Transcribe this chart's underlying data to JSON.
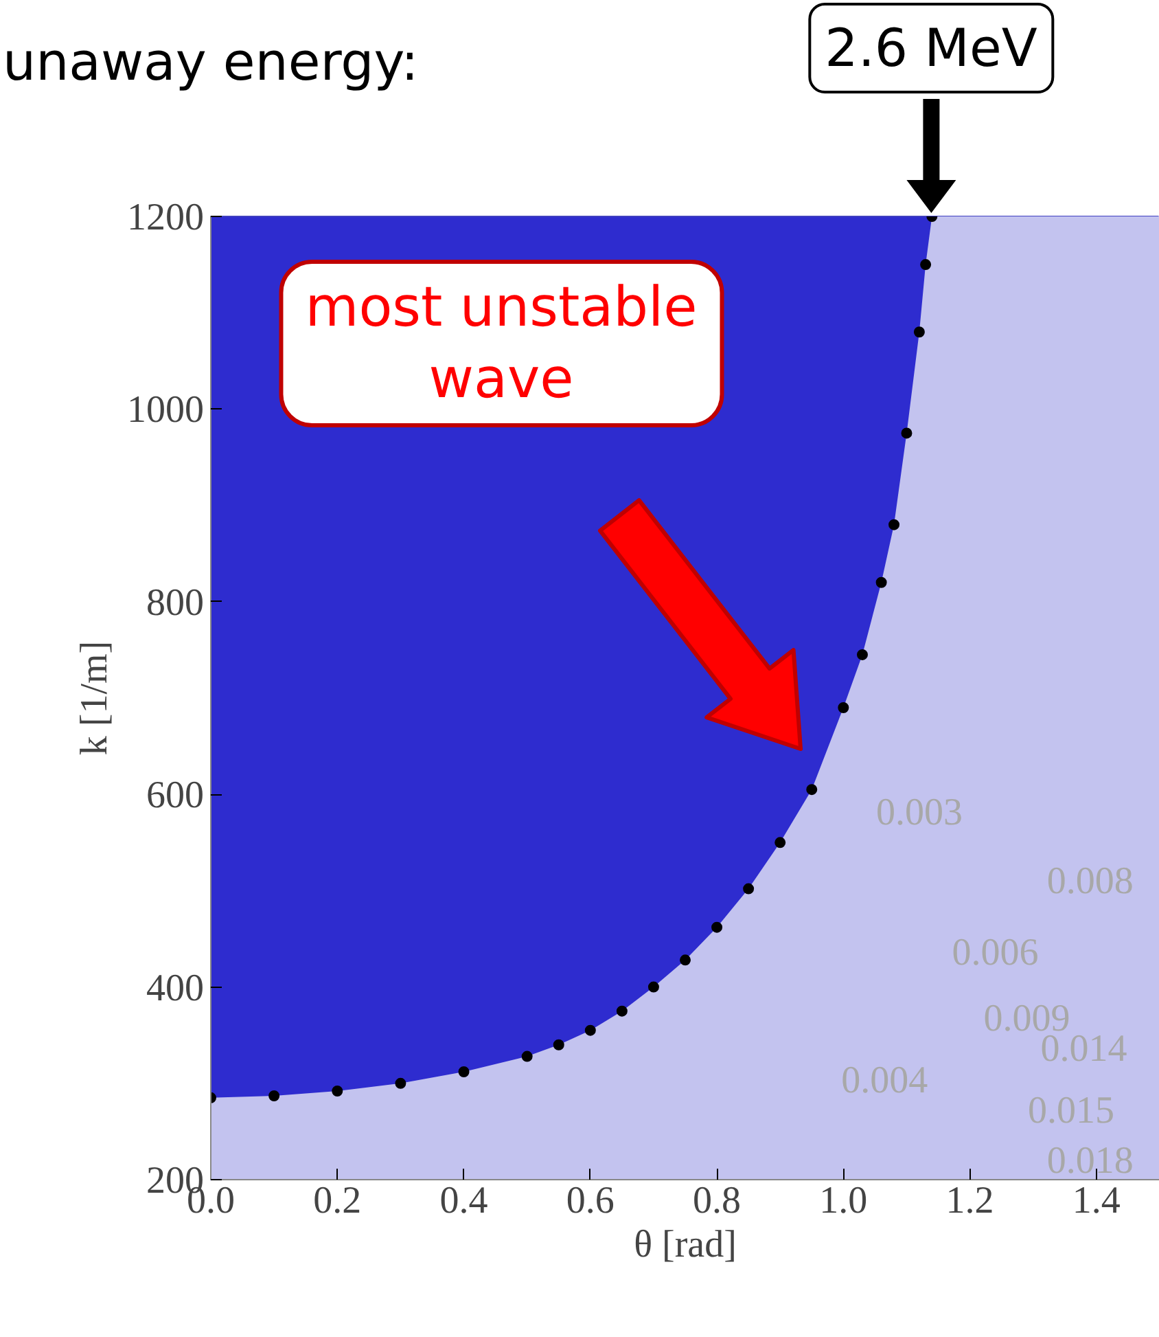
{
  "chart_data": {
    "type": "scatter",
    "title": "unaway energy:",
    "xlabel": "θ [rad]",
    "ylabel": "k [1/m]",
    "xlim": [
      0,
      1.5
    ],
    "ylim": [
      200,
      1200
    ],
    "xticks": [
      {
        "value": 0,
        "label": "0.0"
      },
      0.2,
      0.4,
      0.6,
      0.8,
      {
        "value": 1,
        "label": "1.0"
      },
      1.2,
      1.4
    ],
    "yticks": [
      200,
      400,
      600,
      800,
      1000,
      1200
    ],
    "series": [
      {
        "type": "area",
        "color": "#c3c3ef",
        "x": [
          0,
          0.1,
          0.2,
          0.3,
          0.4,
          0.5,
          0.55,
          0.6,
          0.65,
          0.7,
          0.75,
          0.8,
          0.85,
          0.9,
          0.95,
          1.0,
          1.03,
          1.06,
          1.08,
          1.1,
          1.12,
          1.13,
          1.14,
          1.5
        ],
        "values": [
          285,
          287,
          292,
          300,
          312,
          328,
          340,
          355,
          375,
          400,
          428,
          462,
          502,
          550,
          605,
          690,
          745,
          820,
          880,
          975,
          1080,
          1150,
          1200,
          1200
        ]
      },
      {
        "color": "#000000",
        "marker": "circle",
        "x": [
          0,
          0.1,
          0.2,
          0.3,
          0.4,
          0.5,
          0.55,
          0.6,
          0.65,
          0.7,
          0.75,
          0.8,
          0.85,
          0.9,
          0.95,
          1.0,
          1.03,
          1.06,
          1.08,
          1.1,
          1.12,
          1.13,
          1.14
        ],
        "values": [
          285,
          287,
          292,
          300,
          312,
          328,
          340,
          355,
          375,
          400,
          428,
          462,
          502,
          550,
          605,
          690,
          745,
          820,
          880,
          975,
          1080,
          1150,
          1200
        ]
      }
    ],
    "annotations": [
      {
        "text": "2.6 MeV",
        "x": 1.14,
        "y": 1200
      },
      "most unstable\nwave",
      "0.003",
      "0.008",
      "0.006",
      "0.009",
      "0.014",
      "0.004",
      "0.015",
      "0.018"
    ]
  }
}
